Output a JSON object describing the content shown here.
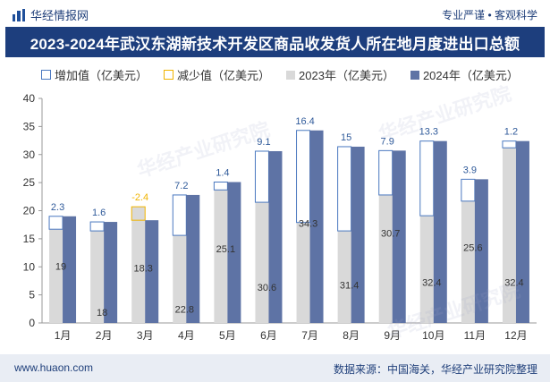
{
  "header": {
    "brand": "华经情报网",
    "tagline": "专业严谨 • 客观科学"
  },
  "title": "2023-2024年武汉东湖新技术开发区商品收发货人所在地月度进出口总额",
  "legend": {
    "increase": "增加值（亿美元）",
    "decrease": "减少值（亿美元）",
    "series2023": "2023年（亿美元）",
    "series2024": "2024年（亿美元）"
  },
  "footer": {
    "url": "www.huaon.com",
    "source": "数据来源：中国海关，华经产业研究院整理"
  },
  "watermark": "华经产业研究院",
  "colors": {
    "bar2023": "#d9d9d9",
    "bar2024": "#5e73a5",
    "increaseBorder": "#4a78c0",
    "decreaseBorder": "#f0b400",
    "diffLabelIncrease": "#2f5a9a",
    "diffLabelDecrease": "#f0b400"
  },
  "chart_data": {
    "type": "bar",
    "categories": [
      "1月",
      "2月",
      "3月",
      "4月",
      "5月",
      "6月",
      "7月",
      "8月",
      "9月",
      "10月",
      "11月",
      "12月"
    ],
    "series": [
      {
        "name": "2023年（亿美元）",
        "values": [
          16.7,
          16.4,
          20.7,
          15.6,
          23.7,
          21.5,
          17.9,
          16.4,
          22.8,
          19.1,
          21.7,
          31.2
        ]
      },
      {
        "name": "2024年（亿美元）",
        "values": [
          19,
          18,
          18.3,
          22.8,
          25.1,
          30.6,
          34.3,
          31.4,
          30.7,
          32.4,
          25.6,
          32.4
        ]
      }
    ],
    "diff": [
      2.3,
      1.6,
      -2.4,
      7.2,
      1.4,
      9.1,
      16.4,
      15,
      7.9,
      13.3,
      3.9,
      1.2
    ],
    "diff_labels": [
      "2.3",
      "1.6",
      "-2.4",
      "7.2",
      "1.4",
      "9.1",
      "16.4",
      "15",
      "7.9",
      "13.3",
      "3.9",
      "1.2"
    ],
    "value_labels_2024": [
      "19",
      "18",
      "18.3",
      "22.8",
      "25.1",
      "30.6",
      "34.3",
      "31.4",
      "30.7",
      "32.4",
      "25.6",
      "32.4"
    ],
    "y_ticks": [
      "0",
      "5",
      "10",
      "15",
      "20",
      "25",
      "30",
      "35",
      "40"
    ],
    "ylim": [
      0,
      40
    ]
  }
}
